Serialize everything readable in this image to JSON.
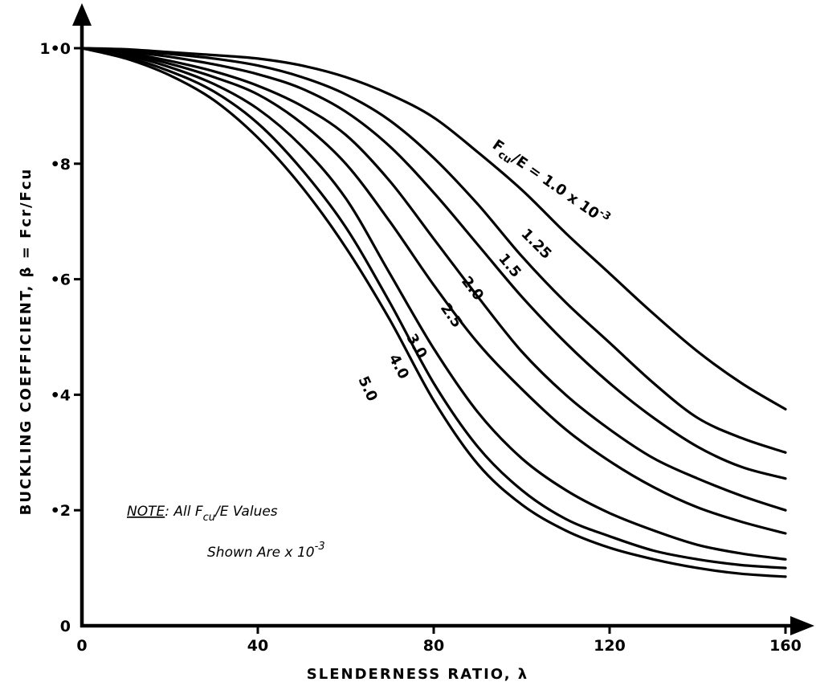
{
  "chart_data": {
    "type": "line",
    "title": "",
    "xlabel": "SLENDERNESS RATIO, λ",
    "ylabel": "BUCKLING COEFFICIENT, β = Fcr/Fcu",
    "xlim": [
      0,
      160
    ],
    "ylim": [
      0,
      1.0
    ],
    "x_ticks": [
      "0",
      "40",
      "80",
      "120",
      "160"
    ],
    "y_ticks": [
      "0",
      "•2",
      "•4",
      "•6",
      "•8",
      "1•0"
    ],
    "grid": false,
    "x": [
      0,
      10,
      20,
      30,
      40,
      50,
      60,
      70,
      80,
      90,
      100,
      110,
      120,
      130,
      140,
      150,
      160
    ],
    "series": [
      {
        "name": "1.0",
        "values": [
          1.0,
          0.998,
          0.993,
          0.988,
          0.982,
          0.97,
          0.95,
          0.92,
          0.88,
          0.82,
          0.755,
          0.68,
          0.61,
          0.54,
          0.475,
          0.42,
          0.375
        ]
      },
      {
        "name": "1.25",
        "values": [
          1.0,
          0.996,
          0.99,
          0.982,
          0.97,
          0.95,
          0.92,
          0.875,
          0.81,
          0.73,
          0.64,
          0.56,
          0.49,
          0.42,
          0.36,
          0.325,
          0.3
        ]
      },
      {
        "name": "1.5",
        "values": [
          1.0,
          0.994,
          0.985,
          0.972,
          0.955,
          0.93,
          0.89,
          0.83,
          0.75,
          0.66,
          0.57,
          0.49,
          0.42,
          0.36,
          0.31,
          0.275,
          0.255
        ]
      },
      {
        "name": "2.0",
        "values": [
          1.0,
          0.992,
          0.978,
          0.96,
          0.935,
          0.9,
          0.85,
          0.77,
          0.67,
          0.57,
          0.475,
          0.4,
          0.34,
          0.29,
          0.255,
          0.225,
          0.2
        ]
      },
      {
        "name": "2.5",
        "values": [
          1.0,
          0.99,
          0.973,
          0.95,
          0.92,
          0.87,
          0.8,
          0.7,
          0.59,
          0.49,
          0.41,
          0.34,
          0.285,
          0.24,
          0.205,
          0.18,
          0.16
        ]
      },
      {
        "name": "3.0",
        "values": [
          1.0,
          0.988,
          0.967,
          0.938,
          0.895,
          0.83,
          0.74,
          0.61,
          0.48,
          0.37,
          0.29,
          0.235,
          0.195,
          0.165,
          0.14,
          0.125,
          0.115
        ]
      },
      {
        "name": "4.0",
        "values": [
          1.0,
          0.985,
          0.96,
          0.925,
          0.87,
          0.79,
          0.69,
          0.56,
          0.42,
          0.31,
          0.235,
          0.185,
          0.155,
          0.13,
          0.115,
          0.105,
          0.1
        ]
      },
      {
        "name": "5.0",
        "values": [
          1.0,
          0.982,
          0.953,
          0.91,
          0.845,
          0.76,
          0.655,
          0.53,
          0.39,
          0.28,
          0.21,
          0.165,
          0.135,
          0.115,
          0.1,
          0.09,
          0.085
        ]
      }
    ],
    "curve_labels": [
      "Fcu/E = 1.0 x 10-3",
      "1.25",
      "1.5",
      "2.0",
      "2.5",
      "3.0",
      "4.0",
      "5.0"
    ],
    "note": {
      "prefix": "NOTE",
      "line1": ": All Fcu/E Values",
      "line2": "Shown Are x 10-3"
    }
  }
}
